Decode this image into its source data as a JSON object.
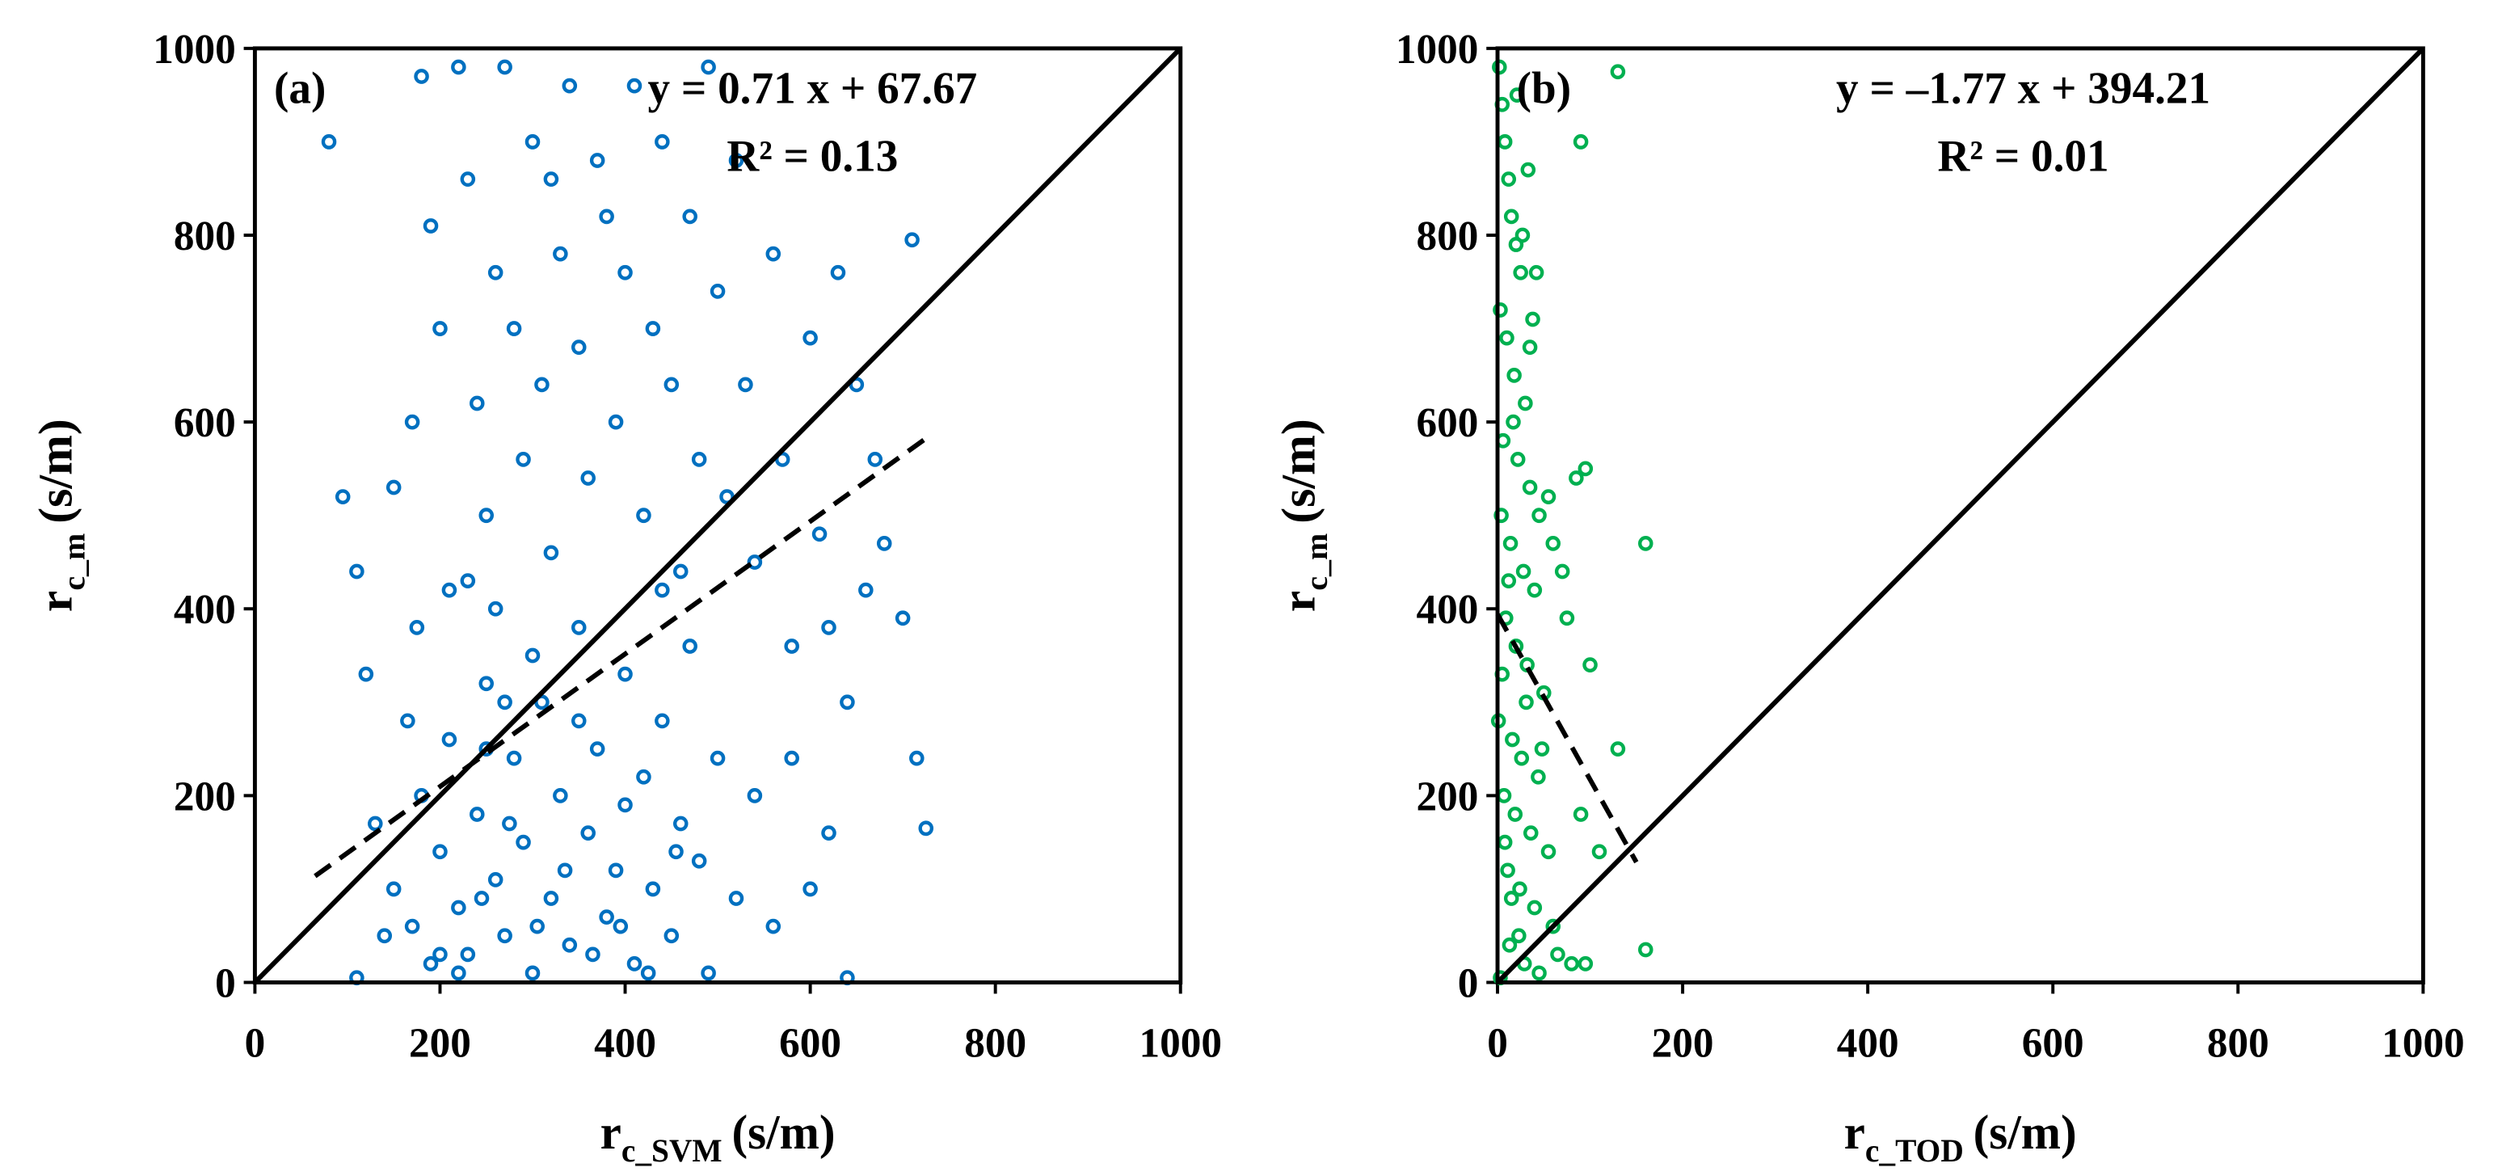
{
  "chart_data": [
    {
      "type": "scatter",
      "label": "(a)",
      "equation": "y = 0.71 x + 67.67",
      "r2_label": "R² = 0.13",
      "x_label": {
        "main": "r",
        "sub": "c_SVM",
        "unit": "(s/m)"
      },
      "y_label": {
        "main": "r",
        "sub": "c_m",
        "unit": "(s/m)"
      },
      "color": "#0070c0",
      "xlim": [
        0,
        1000
      ],
      "ylim": [
        0,
        1000
      ],
      "xticks": [
        0,
        200,
        400,
        600,
        800,
        1000
      ],
      "yticks": [
        0,
        200,
        400,
        600,
        800,
        1000
      ],
      "identity_line": true,
      "trendline": {
        "slope": 0.71,
        "intercept": 67.67,
        "x_range": [
          65,
          725
        ]
      },
      "x": [
        80,
        95,
        110,
        120,
        130,
        150,
        170,
        180,
        190,
        200,
        210,
        220,
        230,
        240,
        250,
        260,
        270,
        280,
        290,
        300,
        310,
        320,
        330,
        340,
        350,
        360,
        370,
        380,
        390,
        400,
        410,
        420,
        430,
        440,
        450,
        460,
        470,
        480,
        490,
        500,
        510,
        520,
        530,
        540,
        560,
        570,
        580,
        600,
        610,
        620,
        630,
        640,
        650,
        660,
        670,
        680,
        700,
        710,
        715,
        725,
        150,
        170,
        180,
        190,
        200,
        210,
        220,
        230,
        240,
        250,
        260,
        270,
        280,
        290,
        300,
        310,
        320,
        330,
        340,
        350,
        360,
        370,
        380,
        390,
        400,
        410,
        420,
        430,
        440,
        450,
        460,
        470,
        480,
        490,
        500,
        520,
        540,
        560,
        580,
        600,
        620,
        640,
        110,
        140,
        165,
        175,
        230,
        260,
        320,
        300,
        270,
        250,
        350,
        400,
        440,
        200,
        220,
        245,
        275,
        305,
        335,
        365,
        395,
        425,
        455
      ],
      "y": [
        900,
        520,
        440,
        330,
        170,
        530,
        600,
        970,
        810,
        700,
        420,
        980,
        860,
        620,
        500,
        760,
        980,
        700,
        560,
        900,
        640,
        860,
        780,
        960,
        680,
        540,
        880,
        820,
        600,
        760,
        960,
        500,
        700,
        900,
        640,
        440,
        820,
        560,
        980,
        740,
        520,
        880,
        640,
        450,
        780,
        560,
        360,
        690,
        480,
        380,
        760,
        300,
        640,
        420,
        560,
        470,
        390,
        795,
        240,
        165,
        100,
        60,
        200,
        20,
        140,
        260,
        80,
        30,
        180,
        320,
        110,
        50,
        240,
        150,
        10,
        300,
        90,
        200,
        40,
        380,
        160,
        250,
        70,
        120,
        330,
        20,
        220,
        100,
        280,
        50,
        170,
        360,
        130,
        10,
        240,
        90,
        200,
        60,
        240,
        100,
        160,
        5,
        5,
        50,
        280,
        380,
        430,
        400,
        460,
        350,
        300,
        250,
        280,
        190,
        420,
        30,
        10,
        90,
        170,
        60,
        120,
        30,
        60,
        10,
        140
      ]
    },
    {
      "type": "scatter",
      "label": "(b)",
      "equation": "y = –1.77 x + 394.21",
      "r2_label": "R² = 0.01",
      "x_label": {
        "main": "r",
        "sub": "c_TOD",
        "unit": "(s/m)"
      },
      "y_label": {
        "main": "r",
        "sub": "c_m",
        "unit": "(s/m)"
      },
      "color": "#00b050",
      "xlim": [
        0,
        1000
      ],
      "ylim": [
        0,
        1000
      ],
      "xticks": [
        0,
        200,
        400,
        600,
        800,
        1000
      ],
      "yticks": [
        0,
        200,
        400,
        600,
        800,
        1000
      ],
      "identity_line": true,
      "trendline": {
        "slope": -1.77,
        "intercept": 394.21,
        "x_range": [
          0,
          150
        ]
      },
      "x": [
        2,
        5,
        8,
        12,
        15,
        20,
        25,
        3,
        10,
        18,
        30,
        6,
        22,
        35,
        4,
        14,
        28,
        40,
        9,
        20,
        32,
        50,
        1,
        16,
        26,
        44,
        7,
        19,
        36,
        55,
        11,
        24,
        40,
        60,
        13,
        29,
        45,
        3,
        21,
        33,
        27,
        38,
        17,
        45,
        12,
        31,
        48,
        8,
        23,
        65,
        80,
        90,
        95,
        85,
        130,
        160,
        100,
        130,
        110,
        160,
        70,
        75,
        90,
        95,
        55,
        60,
        35,
        42,
        5,
        15
      ],
      "y": [
        980,
        940,
        900,
        860,
        820,
        790,
        760,
        720,
        690,
        650,
        620,
        580,
        560,
        530,
        500,
        470,
        440,
        420,
        390,
        360,
        340,
        310,
        280,
        260,
        240,
        220,
        200,
        180,
        160,
        140,
        120,
        100,
        80,
        60,
        40,
        20,
        10,
        5,
        950,
        870,
        800,
        710,
        600,
        500,
        430,
        300,
        250,
        150,
        50,
        30,
        20,
        900,
        550,
        540,
        975,
        470,
        340,
        250,
        140,
        35,
        440,
        390,
        180,
        20,
        520,
        470,
        680,
        760,
        330,
        90
      ]
    }
  ]
}
